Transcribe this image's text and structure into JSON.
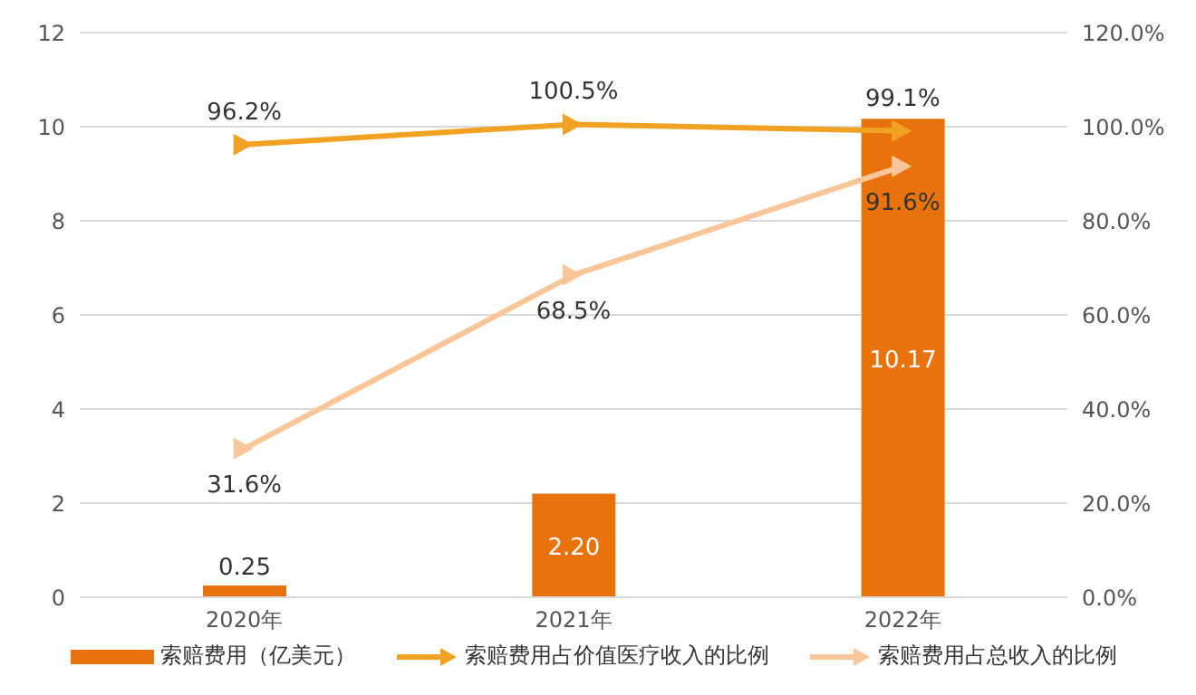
{
  "chart_data": {
    "type": "bar",
    "categories": [
      "2020年",
      "2021年",
      "2022年"
    ],
    "series": [
      {
        "name": "索赔费用（亿美元）",
        "color": "#e8730c",
        "values": [
          0.25,
          2.2,
          10.17
        ],
        "value_labels": [
          "0.25",
          "2.20",
          "10.17"
        ]
      },
      {
        "name": "索赔费用占价值医疗收入的比例",
        "type": "line",
        "axis": "y2",
        "color": "#f2a223",
        "values": [
          96.2,
          100.5,
          99.1
        ],
        "value_labels": [
          "96.2%",
          "100.5%",
          "99.1%"
        ]
      },
      {
        "name": "索赔费用占总收入的比例",
        "type": "line",
        "axis": "y2",
        "color": "#f9c699",
        "values": [
          31.6,
          68.5,
          91.6
        ],
        "value_labels": [
          "31.6%",
          "68.5%",
          "91.6%"
        ]
      }
    ],
    "ylim": [
      0,
      12
    ],
    "yticks": [
      0,
      2,
      4,
      6,
      8,
      10,
      12
    ],
    "y2lim": [
      0,
      120
    ],
    "y2ticks": [
      {
        "value": 0,
        "label": "0.0%"
      },
      {
        "value": 20,
        "label": "20.0%"
      },
      {
        "value": 40,
        "label": "40.0%"
      },
      {
        "value": 60,
        "label": "60.0%"
      },
      {
        "value": 80,
        "label": "80.0%"
      },
      {
        "value": 100,
        "label": "100.0%"
      },
      {
        "value": 120,
        "label": "120.0%"
      }
    ],
    "grid": "y",
    "legend": "bottom",
    "marker": "triangle"
  }
}
